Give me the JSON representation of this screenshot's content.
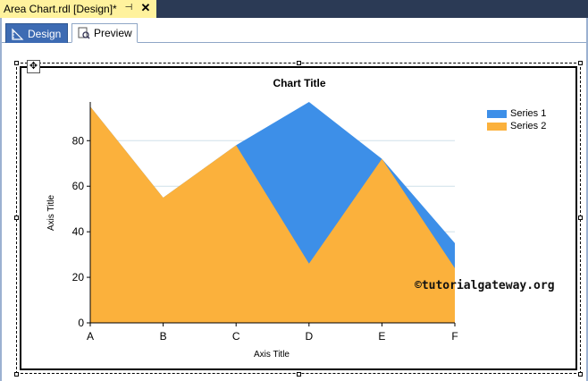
{
  "document_tab": {
    "title": "Area Chart.rdl [Design]*",
    "pin_glyph": "⊣",
    "close_glyph": "✕"
  },
  "view_tabs": {
    "design_label": "Design",
    "preview_label": "Preview",
    "active": "Design"
  },
  "colors": {
    "tab_strip": "#2b3a55",
    "active_doc_tab": "#fff29d",
    "design_tab": "#3d6bb3",
    "series1": "#3d8fe8",
    "series2": "#fbb13c",
    "gridline": "#cfe0ea"
  },
  "chart_data": {
    "type": "area",
    "title": "Chart Title",
    "xlabel": "Axis Title",
    "ylabel": "Axis Title",
    "categories": [
      "A",
      "B",
      "C",
      "D",
      "E",
      "F"
    ],
    "ylim": [
      0,
      97
    ],
    "yticks": [
      0,
      20,
      40,
      60,
      80
    ],
    "grid": true,
    "legend_position": "top-right",
    "series": [
      {
        "name": "Series 1",
        "values": [
          95,
          55,
          78,
          97,
          72,
          35
        ]
      },
      {
        "name": "Series 2",
        "values": [
          95,
          55,
          78,
          26,
          72,
          24
        ]
      }
    ]
  },
  "watermark": "©tutorialgateway.org"
}
